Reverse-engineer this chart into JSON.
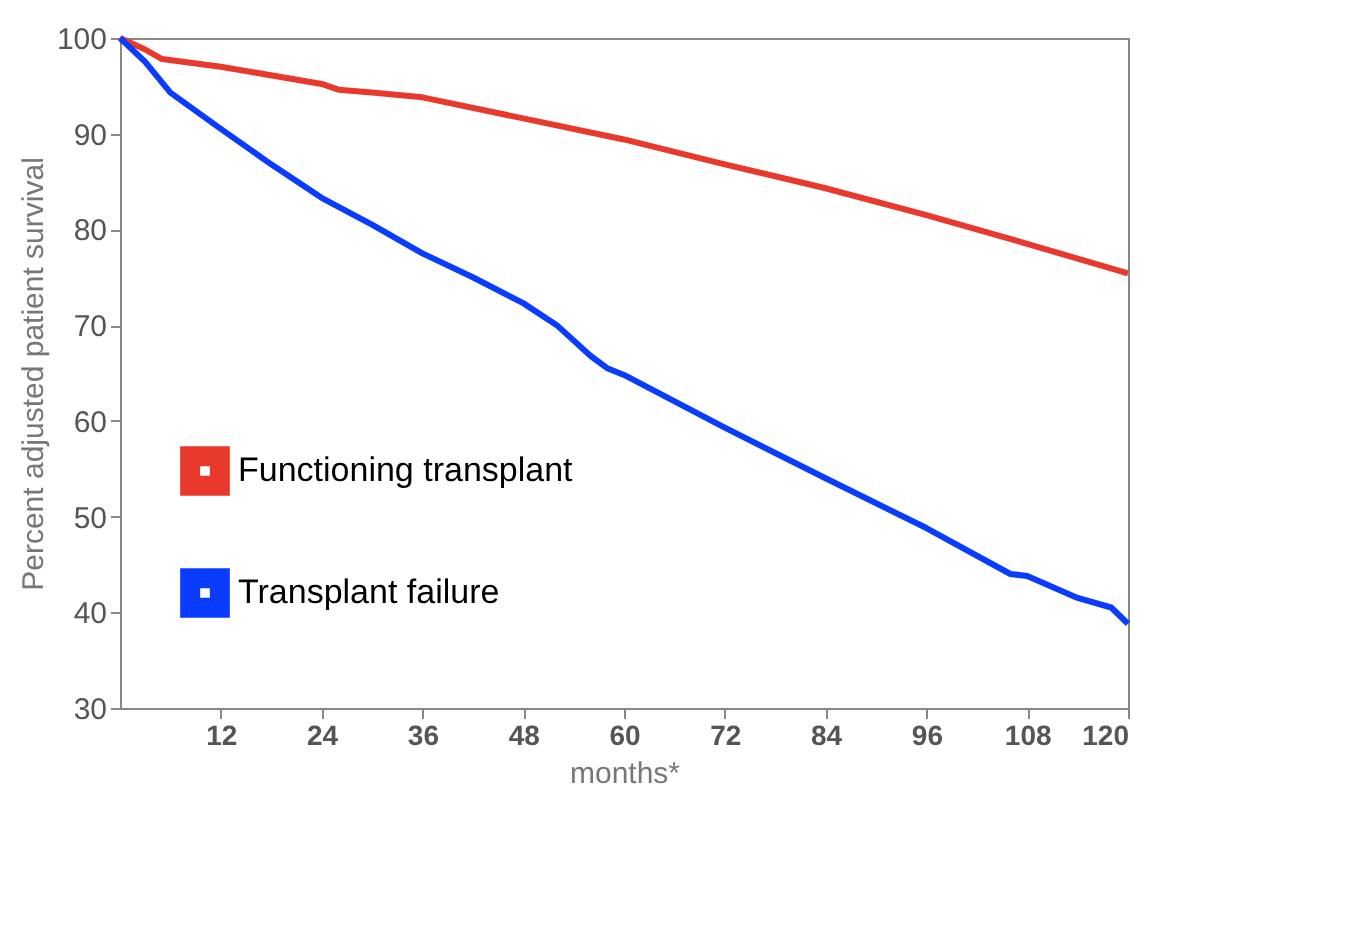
{
  "chart_data": {
    "type": "line",
    "xlabel": "months*",
    "ylabel": "Percent adjusted patient survival",
    "xlim": [
      0,
      120
    ],
    "xticks": [
      12,
      24,
      36,
      48,
      60,
      72,
      84,
      96,
      108,
      120
    ],
    "ylim": [
      30,
      100
    ],
    "yticks": [
      30,
      40,
      50,
      60,
      70,
      80,
      90,
      100
    ],
    "grid": false,
    "legend": "bottom left",
    "marker": "none",
    "line_style": "solid",
    "series": [
      {
        "name": "Functioning transplant",
        "color": "#e8392c",
        "x": [
          0,
          3,
          5,
          12,
          24,
          26,
          30,
          36,
          48,
          60,
          72,
          84,
          96,
          108,
          120
        ],
        "values": [
          100,
          98.8,
          97.8,
          97,
          95.2,
          94.6,
          94.3,
          93.8,
          91.6,
          89.4,
          86.8,
          84.3,
          81.5,
          78.5,
          75.4
        ]
      },
      {
        "name": "Transplant failure",
        "color": "#0a3cff",
        "x": [
          0,
          3,
          6,
          12,
          18,
          24,
          30,
          36,
          42,
          48,
          52,
          56,
          58,
          60,
          72,
          84,
          96,
          106,
          108,
          114,
          118,
          120
        ],
        "values": [
          100,
          97.5,
          94.3,
          90.5,
          86.8,
          83.3,
          80.5,
          77.5,
          75,
          72.3,
          70,
          66.8,
          65.5,
          64.8,
          59.3,
          54,
          48.8,
          44,
          43.8,
          41.5,
          40.5,
          38.8
        ]
      }
    ]
  }
}
